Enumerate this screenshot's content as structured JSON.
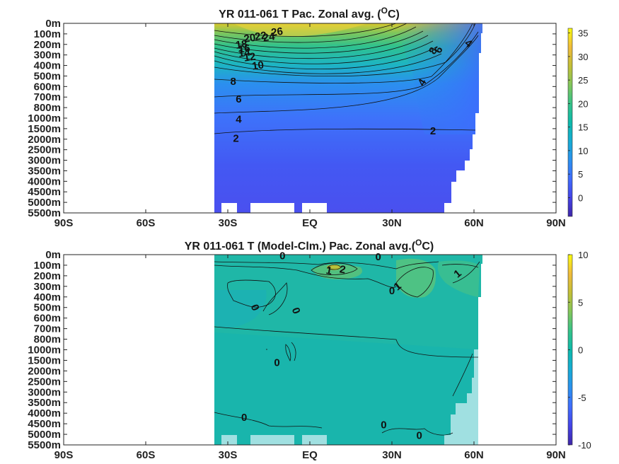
{
  "chart_data": [
    {
      "type": "heatmap",
      "title": "YR 011-061 T Pac. Zonal avg. (",
      "title_sup": "O",
      "title_tail": "C)",
      "x_tick_labels": [
        "90S",
        "60S",
        "30S",
        "EQ",
        "30N",
        "60N",
        "90N"
      ],
      "y_tick_labels": [
        "0m",
        "100m",
        "200m",
        "300m",
        "400m",
        "500m",
        "600m",
        "700m",
        "800m",
        "1000m",
        "1500m",
        "2000m",
        "2500m",
        "3000m",
        "3500m",
        "4000m",
        "4500m",
        "5000m",
        "5500m"
      ],
      "xlim": [
        -90,
        90
      ],
      "colorbar": {
        "min": -4,
        "max": 36,
        "ticks": [
          "35",
          "30",
          "25",
          "20",
          "15",
          "10",
          "5",
          "0"
        ],
        "tick_values": [
          35,
          30,
          25,
          20,
          15,
          10,
          5,
          0
        ]
      },
      "data_extent": [
        -35,
        62
      ],
      "contour_labels": [
        "26",
        "24",
        "22",
        "20",
        "18",
        "16",
        "14",
        "12",
        "10",
        "8",
        "6",
        "4",
        "2",
        "8",
        "6",
        "4"
      ],
      "contour_label_pos": [
        [
          -12,
          0.8
        ],
        [
          -15,
          1.3
        ],
        [
          -18,
          1.2
        ],
        [
          -22,
          1.4
        ],
        [
          -25,
          2
        ],
        [
          -24,
          2.4
        ],
        [
          -24,
          2.8
        ],
        [
          -22,
          3.2
        ],
        [
          -19,
          4.0
        ],
        [
          -28,
          5.5
        ],
        [
          -26,
          7.2
        ],
        [
          -26,
          9.1
        ],
        [
          -27,
          10.9
        ],
        [
          45,
          2.6
        ],
        [
          47,
          2.5
        ],
        [
          41,
          5.6
        ]
      ],
      "deep_label": {
        "text": "4",
        "pos": [
          58,
          1.9
        ]
      },
      "two_label": {
        "text": "2",
        "pos": [
          45,
          10.2
        ]
      }
    },
    {
      "type": "heatmap",
      "title": "YR 011-061 T (Model-Clm.) Pac. Zonal avg.(",
      "title_sup": "O",
      "title_tail": "C)",
      "x_tick_labels": [
        "90S",
        "60S",
        "30S",
        "EQ",
        "30N",
        "60N",
        "90N"
      ],
      "y_tick_labels": [
        "0m",
        "100m",
        "200m",
        "300m",
        "400m",
        "500m",
        "600m",
        "700m",
        "800m",
        "1000m",
        "1500m",
        "2000m",
        "2500m",
        "3000m",
        "3500m",
        "4000m",
        "4500m",
        "5000m",
        "5500m"
      ],
      "xlim": [
        -90,
        90
      ],
      "colorbar": {
        "min": -10,
        "max": 10,
        "ticks": [
          "10",
          "5",
          "0",
          "-5",
          "-10"
        ],
        "tick_values": [
          10,
          5,
          0,
          -5,
          -10
        ]
      },
      "data_extent": [
        -35,
        62
      ],
      "contour_labels": [
        "0",
        "0",
        "1",
        "2",
        "0",
        "1",
        "1",
        "0",
        "0",
        "0",
        "0",
        "0",
        "0"
      ],
      "contour_label_pos": [
        [
          -10,
          0.1
        ],
        [
          25,
          0.2
        ],
        [
          7,
          1.5
        ],
        [
          12,
          1.4
        ],
        [
          30,
          3.4
        ],
        [
          32,
          3.0
        ],
        [
          54,
          1.8
        ],
        [
          -20,
          5.0
        ],
        [
          -5,
          5.3
        ],
        [
          -12,
          10.2
        ],
        [
          -24,
          15.4
        ],
        [
          27,
          16.1
        ],
        [
          40,
          17.1
        ]
      ]
    }
  ]
}
